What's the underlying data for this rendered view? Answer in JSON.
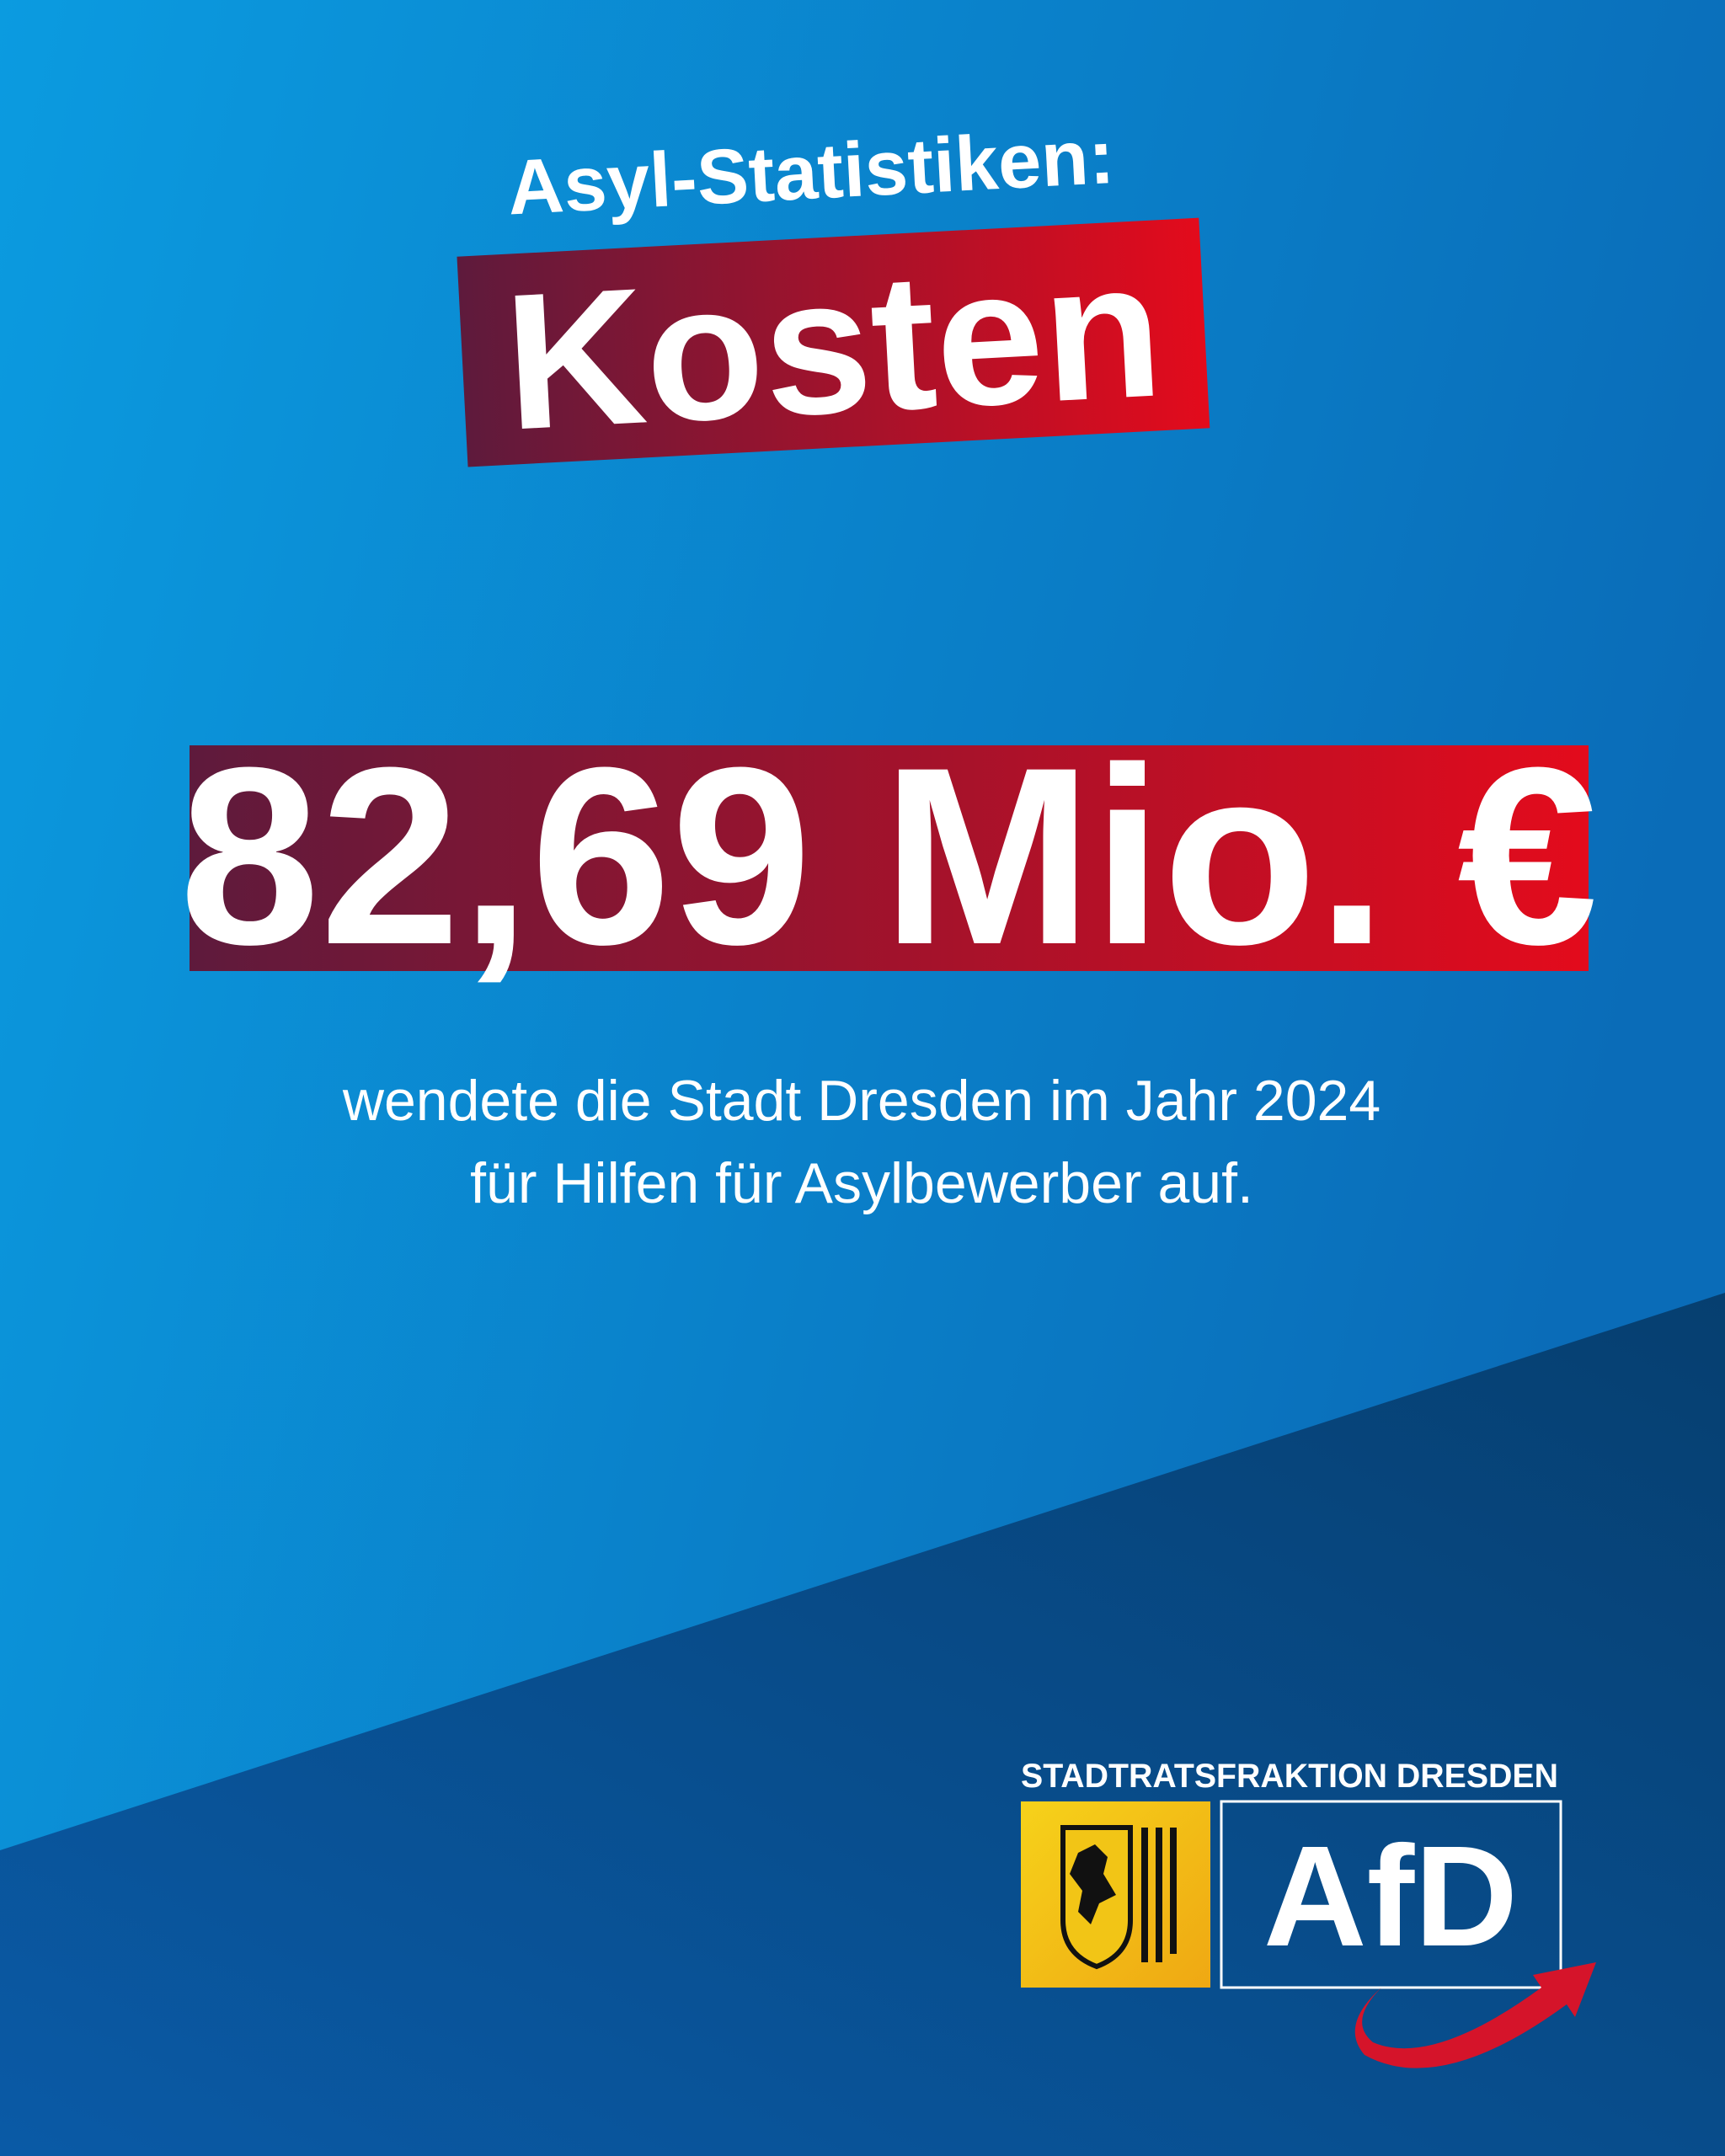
{
  "header": {
    "title": "Asyl-Statistiken:",
    "highlight": "Kosten"
  },
  "figure": {
    "amount": "82,69 Mio. €",
    "description": [
      "wendete die Stadt Dresden im Jahr 2024",
      "für Hilfen für Asylbewerber auf."
    ]
  },
  "logo": {
    "heading": "STADTRATSFRAKTION DRESDEN",
    "name": "AfD"
  }
}
